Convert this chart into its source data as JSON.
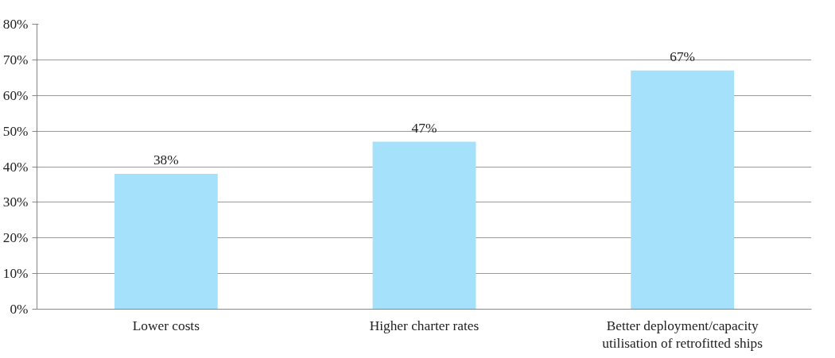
{
  "chart_data": {
    "type": "bar",
    "categories": [
      "Lower costs",
      "Higher charter rates",
      "Better deployment/capacity utilisation of retrofitted ships"
    ],
    "values": [
      38,
      47,
      67
    ],
    "value_labels": [
      "38%",
      "47%",
      "67%"
    ],
    "color": "#a6e1fc",
    "ylim": [
      0,
      80
    ],
    "yticks": [
      {
        "value": 0,
        "label": "0%"
      },
      {
        "value": 10,
        "label": "10%"
      },
      {
        "value": 20,
        "label": "20%"
      },
      {
        "value": 30,
        "label": "30%"
      },
      {
        "value": 40,
        "label": "40%"
      },
      {
        "value": 50,
        "label": "50%"
      },
      {
        "value": 60,
        "label": "60%"
      },
      {
        "value": 70,
        "label": "70%"
      },
      {
        "value": 80,
        "label": "80%"
      }
    ],
    "grid": "y"
  }
}
